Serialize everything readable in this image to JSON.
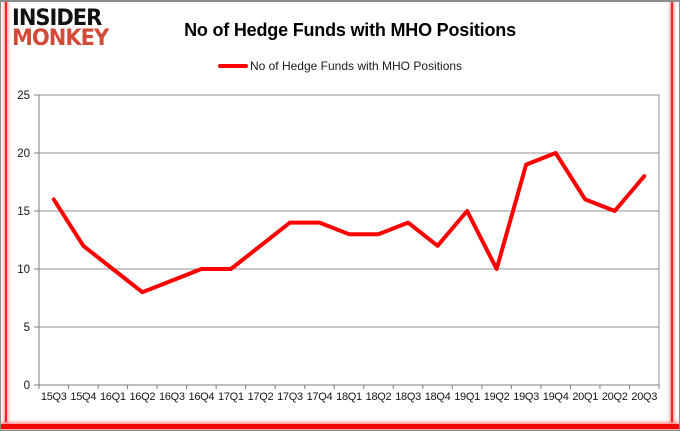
{
  "logo": {
    "line1": "INSIDER",
    "line2": "MONKEY"
  },
  "header": {
    "title": "No of Hedge Funds with MHO Positions"
  },
  "legend": {
    "label": "No of Hedge Funds with MHO Positions",
    "marker_color": "#FF0000"
  },
  "colors": {
    "line": "#FF0000",
    "grid": "#909090",
    "axis": "#7f7f7f",
    "tick_text": "#151515",
    "logo_red": "#D24B38",
    "frame_red": "#FF2020",
    "frame_gray": "#8C8C8C",
    "background": "#FFFFFF"
  },
  "chart_data": {
    "type": "line",
    "title": "No of Hedge Funds with MHO Positions",
    "categories": [
      "15Q3",
      "15Q4",
      "16Q1",
      "16Q2",
      "16Q3",
      "16Q4",
      "17Q1",
      "17Q2",
      "17Q3",
      "17Q4",
      "18Q1",
      "18Q2",
      "18Q3",
      "18Q4",
      "19Q1",
      "19Q2",
      "19Q3",
      "19Q4",
      "20Q1",
      "20Q2",
      "20Q3"
    ],
    "series": [
      {
        "name": "No of Hedge Funds with MHO Positions",
        "values": [
          16,
          12,
          10,
          8,
          9,
          10,
          10,
          12,
          14,
          14,
          13,
          13,
          14,
          12,
          15,
          10,
          19,
          20,
          16,
          15,
          18
        ],
        "color": "#FF0000"
      }
    ],
    "xlabel": "",
    "ylabel": "",
    "ylim": [
      0,
      25
    ],
    "yticks": [
      0,
      5,
      10,
      15,
      20,
      25
    ],
    "grid": true,
    "legend_position": "top"
  }
}
